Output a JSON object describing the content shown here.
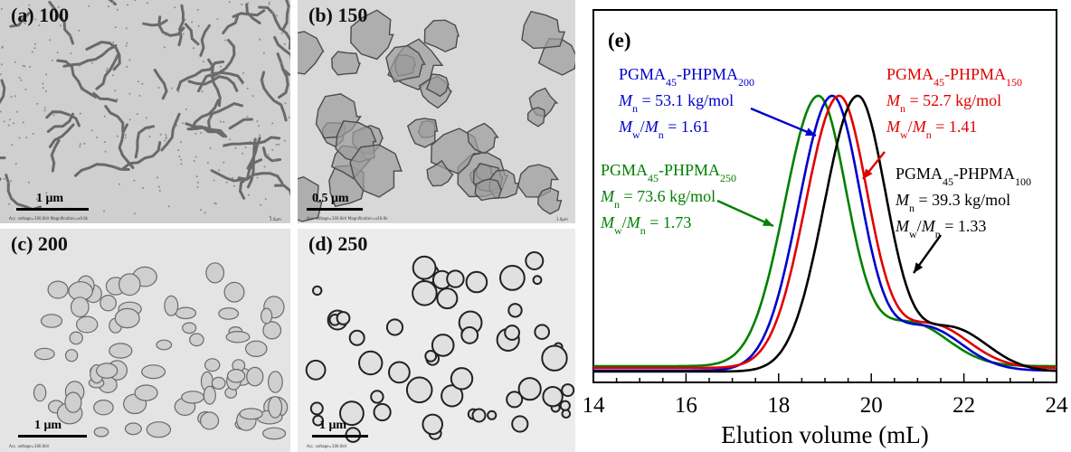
{
  "panels": [
    {
      "label": "(a) 100",
      "scalebar": "1 μm",
      "footer_left": "Acc. voltage=100.0kV  Magnification=x4.0k",
      "footer_right": "1.0μm"
    },
    {
      "label": "(b) 150",
      "scalebar": "0.5 μm",
      "footer_left": "Acc. voltage=100.0kV  Magnification=x10.0k",
      "footer_right": "1.0μm"
    },
    {
      "label": "(c) 200",
      "scalebar": "1 μm",
      "footer_left": "Acc. voltage=100.0kV"
    },
    {
      "label": "(d) 250",
      "scalebar": "1 μm",
      "footer_left": "Acc. voltage=100.0kV"
    }
  ],
  "chart_data": {
    "type": "line",
    "panel_label": "(e)",
    "xlabel": "Elution volume (mL)",
    "ylabel": "",
    "xlim": [
      14,
      24
    ],
    "x_ticks": [
      14,
      16,
      18,
      20,
      22,
      24
    ],
    "grid": false,
    "series": [
      {
        "color": "#008000",
        "peak": 18.85,
        "polymer": "PGMA",
        "sub1": "45",
        "block": "-PHPMA",
        "sub2": "250",
        "mn": "73.6 kg/mol",
        "dispersity": "1.73"
      },
      {
        "color": "#0000cc",
        "peak": 19.15,
        "polymer": "PGMA",
        "sub1": "45",
        "block": "-PHPMA",
        "sub2": "200",
        "mn": "53.1 kg/mol",
        "dispersity": "1.61"
      },
      {
        "color": "#e00000",
        "peak": 19.3,
        "polymer": "PGMA",
        "sub1": "45",
        "block": "-PHPMA",
        "sub2": "150",
        "mn": "52.7 kg/mol",
        "dispersity": "1.41"
      },
      {
        "color": "#000000",
        "peak": 19.7,
        "polymer": "PGMA",
        "sub1": "45",
        "block": "-PHPMA",
        "sub2": "100",
        "mn": "39.3 kg/mol",
        "dispersity": "1.33"
      }
    ],
    "mn_symbol": "M",
    "mn_sub": "n",
    "mw_symbol": "M",
    "mw_sub": "w"
  }
}
